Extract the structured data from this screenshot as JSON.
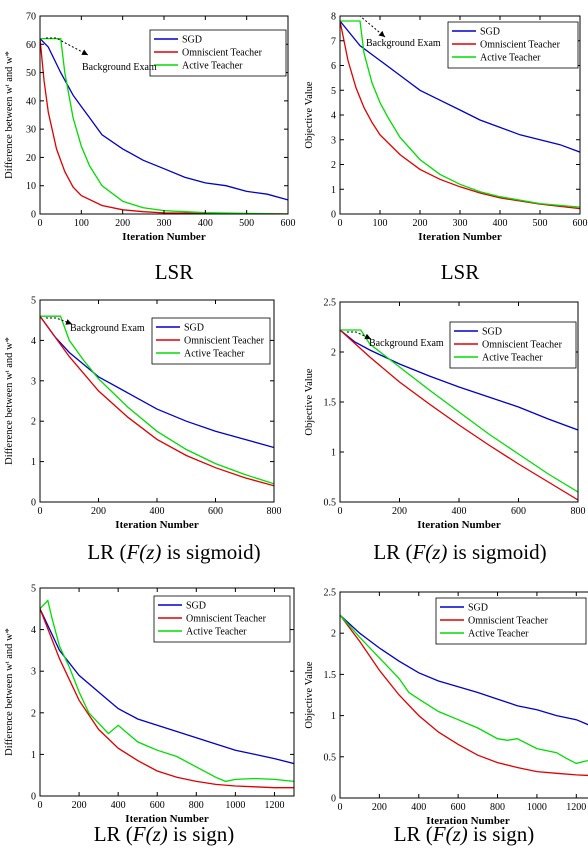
{
  "colors": {
    "sgd": "#0000cc",
    "omniscient": "#e00000",
    "active": "#00dd00",
    "axis": "#000000"
  },
  "captions": {
    "lsr": "LSR",
    "sigmoid": {
      "pre": "LR (",
      "math": "F(z)",
      "post": " is sigmoid)"
    },
    "sign": {
      "pre": "LR (",
      "math": "F(z)",
      "post": " is sign)"
    }
  },
  "chart_data": [
    {
      "type": "line",
      "xlabel": "Iteration Number",
      "ylabel": "Difference between wᵗ and w*",
      "xlim": [
        0,
        600
      ],
      "ylim": [
        0,
        70
      ],
      "xticks": [
        0,
        100,
        200,
        300,
        400,
        500,
        600
      ],
      "yticks": [
        0,
        10,
        20,
        30,
        40,
        50,
        60,
        70
      ],
      "legend": "top-right",
      "annotation": "Background Exam",
      "series": [
        {
          "name": "SGD",
          "x": [
            0,
            20,
            50,
            80,
            100,
            120,
            150,
            200,
            250,
            300,
            350,
            400,
            450,
            500,
            550,
            600
          ],
          "y": [
            62,
            59,
            50,
            42,
            38,
            34,
            28,
            23,
            19,
            16,
            13,
            11,
            10,
            8,
            7,
            5
          ]
        },
        {
          "name": "Omniscient Teacher",
          "x": [
            0,
            10,
            20,
            40,
            60,
            80,
            100,
            150,
            200,
            250,
            300,
            400,
            500,
            600
          ],
          "y": [
            62,
            47,
            36,
            23,
            15,
            9.5,
            6.5,
            3,
            1.5,
            0.8,
            0.4,
            0.2,
            0.1,
            0
          ]
        },
        {
          "name": "Active Teacher",
          "x": [
            0,
            50,
            60,
            80,
            100,
            120,
            150,
            200,
            250,
            300,
            350,
            400,
            500,
            600
          ],
          "y": [
            62,
            62,
            50,
            34,
            24,
            17,
            10,
            4.5,
            2.2,
            1.2,
            0.8,
            0.5,
            0.2,
            0
          ]
        }
      ]
    },
    {
      "type": "line",
      "xlabel": "Iteration Number",
      "ylabel": "Objective Value",
      "xlim": [
        0,
        600
      ],
      "ylim": [
        0,
        8
      ],
      "xticks": [
        0,
        100,
        200,
        300,
        400,
        500,
        600
      ],
      "yticks": [
        0,
        1,
        2,
        3,
        4,
        5,
        6,
        7,
        8
      ],
      "legend": "top-right",
      "annotation": "Background Exam",
      "series": [
        {
          "name": "SGD",
          "x": [
            0,
            50,
            100,
            150,
            200,
            250,
            300,
            350,
            400,
            450,
            500,
            550,
            600
          ],
          "y": [
            7.8,
            6.8,
            6.2,
            5.6,
            5.0,
            4.6,
            4.2,
            3.8,
            3.5,
            3.2,
            3.0,
            2.8,
            2.5
          ]
        },
        {
          "name": "Omniscient Teacher",
          "x": [
            0,
            20,
            40,
            60,
            80,
            100,
            150,
            200,
            250,
            300,
            350,
            400,
            500,
            600
          ],
          "y": [
            7.8,
            6.2,
            5.1,
            4.3,
            3.7,
            3.2,
            2.4,
            1.8,
            1.4,
            1.1,
            0.85,
            0.65,
            0.4,
            0.22
          ]
        },
        {
          "name": "Active Teacher",
          "x": [
            0,
            50,
            60,
            80,
            100,
            120,
            150,
            200,
            250,
            300,
            350,
            400,
            500,
            600
          ],
          "y": [
            7.8,
            7.8,
            6.5,
            5.3,
            4.5,
            3.9,
            3.1,
            2.2,
            1.6,
            1.2,
            0.9,
            0.7,
            0.42,
            0.28
          ]
        }
      ]
    },
    {
      "type": "line",
      "xlabel": "Iteration Number",
      "ylabel": "Difference between wᵗ and w*",
      "xlim": [
        0,
        800
      ],
      "ylim": [
        0,
        5
      ],
      "xticks": [
        0,
        200,
        400,
        600,
        800
      ],
      "yticks": [
        0,
        1,
        2,
        3,
        4,
        5
      ],
      "legend": "top-right",
      "annotation": "Background Exam",
      "series": [
        {
          "name": "SGD",
          "x": [
            0,
            50,
            100,
            150,
            200,
            300,
            400,
            500,
            600,
            700,
            800
          ],
          "y": [
            4.6,
            4.1,
            3.7,
            3.4,
            3.1,
            2.7,
            2.3,
            2.0,
            1.75,
            1.55,
            1.35
          ]
        },
        {
          "name": "Omniscient Teacher",
          "x": [
            0,
            100,
            200,
            300,
            400,
            500,
            600,
            700,
            800
          ],
          "y": [
            4.6,
            3.6,
            2.75,
            2.1,
            1.55,
            1.15,
            0.85,
            0.6,
            0.4
          ]
        },
        {
          "name": "Active Teacher",
          "x": [
            0,
            70,
            100,
            150,
            200,
            300,
            400,
            500,
            600,
            700,
            800
          ],
          "y": [
            4.6,
            4.6,
            4.0,
            3.5,
            3.05,
            2.35,
            1.75,
            1.3,
            0.95,
            0.68,
            0.45
          ]
        }
      ]
    },
    {
      "type": "line",
      "xlabel": "Iteration Number",
      "ylabel": "Objective Value",
      "xlim": [
        0,
        800
      ],
      "ylim": [
        0.5,
        2.5
      ],
      "xticks": [
        0,
        200,
        400,
        600,
        800
      ],
      "yticks": [
        0.5,
        1,
        1.5,
        2,
        2.5
      ],
      "legend": "top-right",
      "annotation": "Background Exam",
      "series": [
        {
          "name": "SGD",
          "x": [
            0,
            50,
            100,
            200,
            300,
            400,
            500,
            600,
            700,
            800
          ],
          "y": [
            2.22,
            2.1,
            2.02,
            1.88,
            1.76,
            1.65,
            1.55,
            1.45,
            1.33,
            1.22
          ]
        },
        {
          "name": "Omniscient Teacher",
          "x": [
            0,
            100,
            200,
            300,
            400,
            500,
            600,
            700,
            800
          ],
          "y": [
            2.22,
            1.95,
            1.7,
            1.48,
            1.27,
            1.07,
            0.88,
            0.7,
            0.52
          ]
        },
        {
          "name": "Active Teacher",
          "x": [
            0,
            70,
            100,
            200,
            300,
            400,
            500,
            600,
            700,
            800
          ],
          "y": [
            2.22,
            2.22,
            2.08,
            1.85,
            1.62,
            1.4,
            1.18,
            0.98,
            0.78,
            0.6
          ]
        }
      ]
    },
    {
      "type": "line",
      "xlabel": "Iteration Number",
      "ylabel": "Difference between wᵗ and w*",
      "xlim": [
        0,
        1300
      ],
      "ylim": [
        0,
        5
      ],
      "xticks": [
        0,
        200,
        400,
        600,
        800,
        1000,
        1200
      ],
      "yticks": [
        0,
        1,
        2,
        3,
        4,
        5
      ],
      "legend": "top-right",
      "series": [
        {
          "name": "SGD",
          "x": [
            0,
            50,
            100,
            200,
            300,
            400,
            500,
            600,
            700,
            800,
            900,
            1000,
            1100,
            1200,
            1300
          ],
          "y": [
            4.5,
            4.0,
            3.5,
            2.9,
            2.5,
            2.1,
            1.85,
            1.7,
            1.55,
            1.4,
            1.25,
            1.1,
            1.0,
            0.9,
            0.78
          ]
        },
        {
          "name": "Omniscient Teacher",
          "x": [
            0,
            100,
            200,
            300,
            400,
            500,
            600,
            700,
            800,
            900,
            1000,
            1100,
            1200,
            1300
          ],
          "y": [
            4.5,
            3.3,
            2.3,
            1.6,
            1.15,
            0.85,
            0.6,
            0.45,
            0.35,
            0.28,
            0.24,
            0.22,
            0.2,
            0.2
          ]
        },
        {
          "name": "Active Teacher",
          "x": [
            0,
            20,
            40,
            60,
            100,
            150,
            200,
            250,
            300,
            350,
            400,
            450,
            500,
            550,
            600,
            700,
            800,
            900,
            950,
            1000,
            1100,
            1200,
            1300
          ],
          "y": [
            4.5,
            4.6,
            4.7,
            4.3,
            3.6,
            3.1,
            2.5,
            2.0,
            1.75,
            1.5,
            1.7,
            1.5,
            1.3,
            1.2,
            1.1,
            0.95,
            0.7,
            0.45,
            0.35,
            0.4,
            0.42,
            0.4,
            0.35
          ]
        }
      ]
    },
    {
      "type": "line",
      "xlabel": "Iteration Number",
      "ylabel": "Objective Value",
      "xlim": [
        0,
        1300
      ],
      "ylim": [
        0,
        2.5
      ],
      "xticks": [
        0,
        200,
        400,
        600,
        800,
        1000,
        1200
      ],
      "yticks": [
        0,
        0.5,
        1,
        1.5,
        2,
        2.5
      ],
      "legend": "top-right",
      "series": [
        {
          "name": "SGD",
          "x": [
            0,
            100,
            200,
            300,
            400,
            500,
            600,
            700,
            800,
            900,
            1000,
            1100,
            1200,
            1300
          ],
          "y": [
            2.22,
            2.0,
            1.82,
            1.66,
            1.52,
            1.42,
            1.35,
            1.28,
            1.2,
            1.12,
            1.07,
            1.0,
            0.95,
            0.85
          ]
        },
        {
          "name": "Omniscient Teacher",
          "x": [
            0,
            100,
            200,
            300,
            400,
            500,
            600,
            700,
            800,
            900,
            1000,
            1100,
            1200,
            1300
          ],
          "y": [
            2.22,
            1.9,
            1.55,
            1.25,
            1.0,
            0.8,
            0.65,
            0.52,
            0.43,
            0.37,
            0.32,
            0.3,
            0.28,
            0.27
          ]
        },
        {
          "name": "Active Teacher",
          "x": [
            0,
            100,
            200,
            300,
            350,
            400,
            500,
            600,
            700,
            800,
            850,
            900,
            1000,
            1100,
            1150,
            1200,
            1250,
            1300
          ],
          "y": [
            2.22,
            1.95,
            1.7,
            1.45,
            1.28,
            1.2,
            1.05,
            0.95,
            0.85,
            0.72,
            0.7,
            0.72,
            0.6,
            0.55,
            0.48,
            0.42,
            0.45,
            0.45
          ]
        }
      ]
    }
  ]
}
